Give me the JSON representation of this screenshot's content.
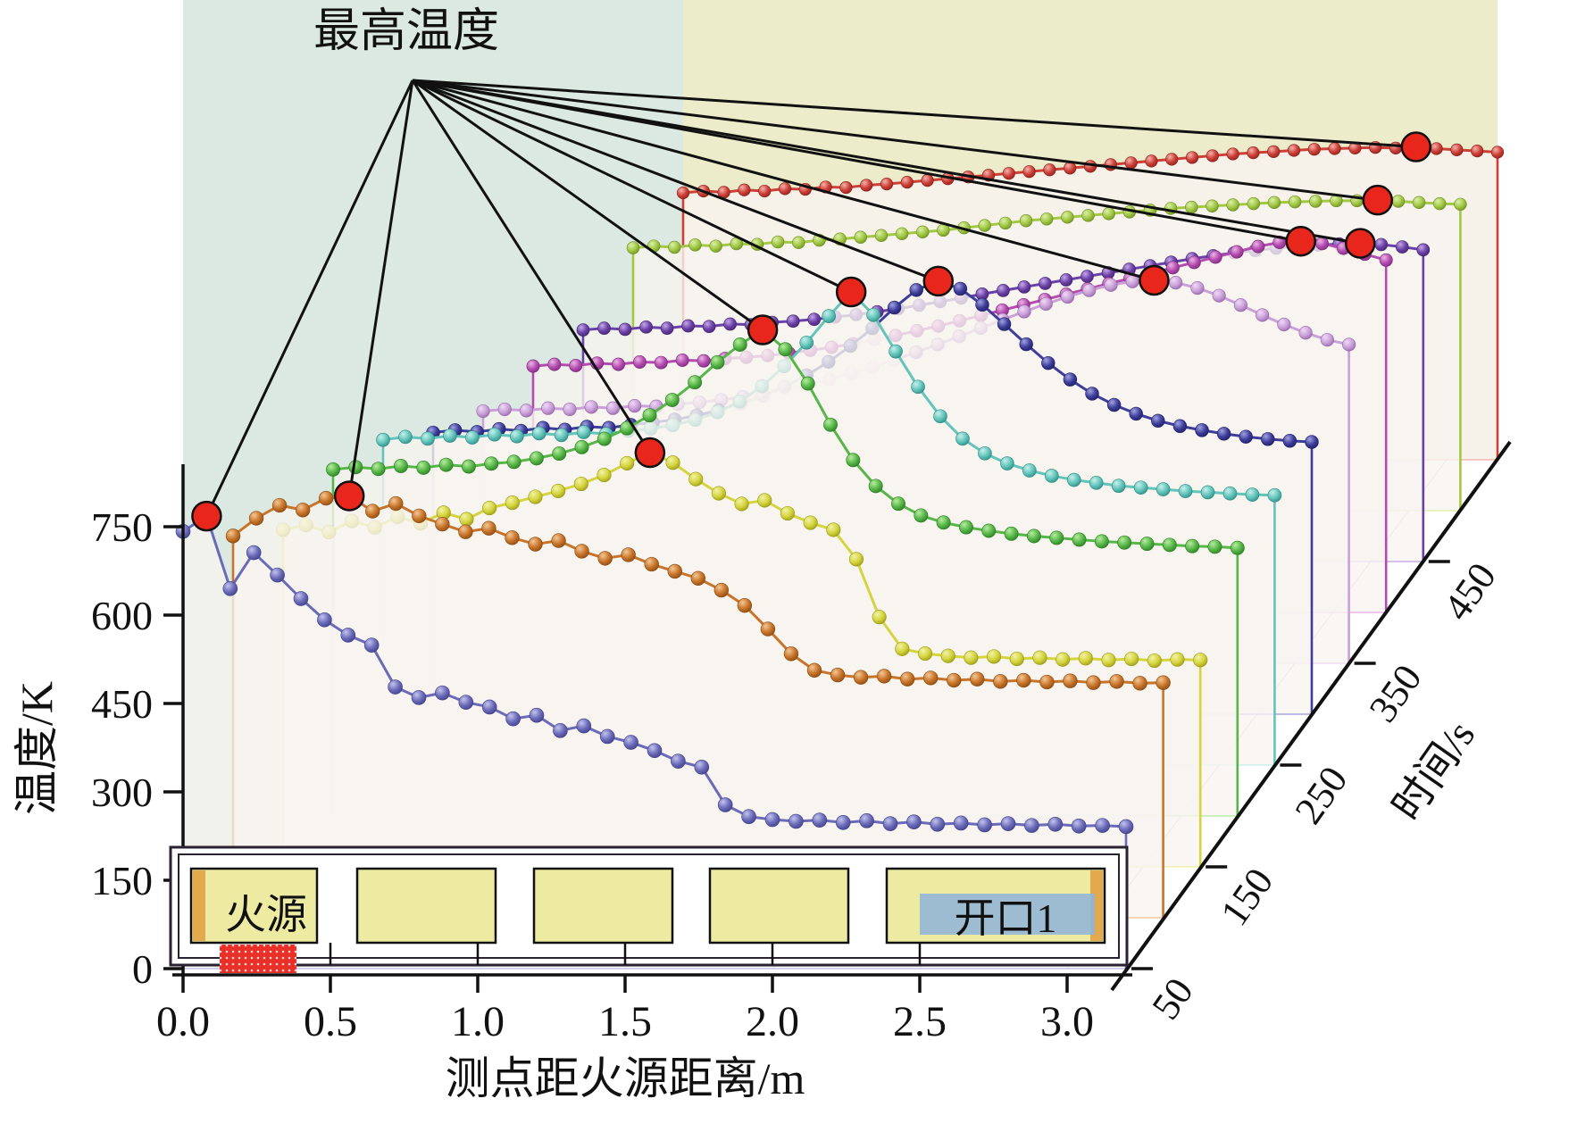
{
  "chart_data": {
    "type": "line",
    "variant": "3d-waterfall-scatter",
    "annotation": "最高温度",
    "xlabel": "测点距火源距离/m",
    "ylabel": "温度/K",
    "zlabel": "时间/s",
    "x_ticks": [
      "0.0",
      "0.5",
      "1.0",
      "1.5",
      "2.0",
      "2.5",
      "3.0"
    ],
    "y_ticks": [
      "0",
      "150",
      "300",
      "450",
      "600",
      "750"
    ],
    "t_ticks": [
      "50",
      "150",
      "250",
      "350",
      "450"
    ],
    "x_start": 0.0,
    "x_step": 0.08,
    "x_end": 3.2,
    "ylim": [
      0,
      850
    ],
    "grid": true,
    "wall_left_color": "#dbe9e2",
    "wall_back_color": "#edecca",
    "max_marker_color": "#e8261c",
    "series": [
      {
        "time": 50,
        "color": "#6a6ab8",
        "light": "#c3c3ee",
        "edge": "#3f3f8a",
        "max": {
          "x": 0.08,
          "T": 768
        },
        "values": [
          742,
          768,
          645,
          706,
          668,
          628,
          592,
          566,
          549,
          478,
          460,
          468,
          452,
          444,
          424,
          430,
          404,
          412,
          394,
          384,
          370,
          352,
          342,
          278,
          258,
          253,
          250,
          252,
          248,
          251,
          246,
          249,
          245,
          247,
          244,
          246,
          243,
          245,
          242,
          243,
          241
        ]
      },
      {
        "time": 100,
        "color": "#c8742a",
        "light": "#f3c795",
        "edge": "#8a4a10",
        "max": {
          "x": 0.4,
          "T": 716
        },
        "values": [
          648,
          678,
          700,
          692,
          712,
          716,
          690,
          703,
          682,
          668,
          655,
          661,
          645,
          634,
          640,
          622,
          610,
          616,
          600,
          588,
          576,
          556,
          530,
          490,
          448,
          420,
          412,
          408,
          410,
          405,
          407,
          403,
          405,
          401,
          403,
          400,
          402,
          399,
          401,
          398,
          399
        ]
      },
      {
        "time": 150,
        "color": "#d4d43e",
        "light": "#f2f2a8",
        "edge": "#9a9a12",
        "max": {
          "x": 1.28,
          "T": 703
        },
        "values": [
          572,
          580,
          568,
          587,
          576,
          594,
          583,
          601,
          590,
          609,
          618,
          628,
          638,
          650,
          665,
          685,
          703,
          686,
          658,
          634,
          616,
          622,
          600,
          584,
          572,
          522,
          424,
          370,
          362,
          358,
          355,
          357,
          353,
          355,
          352,
          354,
          351,
          353,
          350,
          352,
          351
        ]
      },
      {
        "time": 200,
        "color": "#57b648",
        "light": "#b7ec9f",
        "edge": "#2a7d22",
        "max": {
          "x": 1.52,
          "T": 825
        },
        "values": [
          588,
          592,
          589,
          594,
          591,
          596,
          593,
          598,
          601,
          607,
          615,
          626,
          640,
          658,
          680,
          706,
          736,
          770,
          800,
          825,
          792,
          734,
          664,
          604,
          560,
          530,
          510,
          498,
          490,
          484,
          479,
          475,
          472,
          469,
          466,
          464,
          462,
          460,
          458,
          457,
          455
        ]
      },
      {
        "time": 250,
        "color": "#62c4ba",
        "light": "#c6efeb",
        "edge": "#2d8c84",
        "max": {
          "x": 1.68,
          "T": 803
        },
        "values": [
          552,
          557,
          554,
          559,
          556,
          561,
          558,
          563,
          560,
          565,
          562,
          567,
          571,
          577,
          586,
          599,
          617,
          643,
          677,
          717,
          762,
          803,
          764,
          702,
          642,
          592,
          554,
          529,
          512,
          500,
          491,
          484,
          479,
          474,
          471,
          468,
          465,
          463,
          461,
          459,
          458
        ]
      },
      {
        "time": 300,
        "color": "#3d3d9b",
        "light": "#a2a2e0",
        "edge": "#1f1f66",
        "max": {
          "x": 1.84,
          "T": 735
        },
        "values": [
          478,
          482,
          479,
          484,
          481,
          486,
          483,
          488,
          486,
          491,
          495,
          500,
          507,
          516,
          527,
          540,
          556,
          575,
          598,
          625,
          655,
          690,
          720,
          735,
          722,
          695,
          662,
          628,
          596,
          568,
          544,
          525,
          510,
          498,
          489,
          482,
          476,
          471,
          467,
          464,
          462
        ]
      },
      {
        "time": 350,
        "color": "#c9a0d8",
        "light": "#f0d9f6",
        "edge": "#9668ab",
        "max": {
          "x": 2.48,
          "T": 650
        },
        "values": [
          428,
          431,
          429,
          433,
          431,
          435,
          433,
          437,
          436,
          440,
          443,
          447,
          452,
          458,
          465,
          473,
          482,
          492,
          503,
          515,
          528,
          541,
          555,
          569,
          583,
          597,
          610,
          622,
          633,
          642,
          648,
          650,
          646,
          637,
          624,
          608,
          591,
          575,
          561,
          549,
          541
        ]
      },
      {
        "time": 400,
        "color": "#b44cb0",
        "light": "#eab4e4",
        "edge": "#7d2a7d",
        "max": {
          "x": 2.88,
          "T": 630
        },
        "values": [
          418,
          421,
          419,
          423,
          421,
          425,
          424,
          428,
          427,
          431,
          433,
          436,
          440,
          445,
          450,
          456,
          463,
          470,
          478,
          486,
          495,
          504,
          513,
          522,
          531,
          540,
          549,
          558,
          567,
          576,
          585,
          594,
          603,
          612,
          621,
          628,
          630,
          626,
          618,
          608,
          598
        ]
      },
      {
        "time": 450,
        "color": "#6a41a8",
        "light": "#c5a8e6",
        "edge": "#472370",
        "max": {
          "x": 2.96,
          "T": 540
        },
        "values": [
          393,
          396,
          394,
          398,
          396,
          400,
          399,
          403,
          402,
          406,
          408,
          411,
          415,
          419,
          424,
          429,
          435,
          441,
          447,
          454,
          460,
          466,
          472,
          478,
          484,
          490,
          496,
          502,
          508,
          514,
          519,
          524,
          528,
          532,
          535,
          537,
          539,
          540,
          538,
          534,
          529
        ]
      },
      {
        "time": 500,
        "color": "#a2c845",
        "light": "#dcefab",
        "edge": "#6d8f1f",
        "max": {
          "x": 2.88,
          "T": 527
        },
        "values": [
          446,
          449,
          447,
          451,
          449,
          453,
          452,
          456,
          455,
          459,
          461,
          464,
          467,
          470,
          473,
          476,
          480,
          484,
          488,
          492,
          495,
          498,
          501,
          504,
          507,
          510,
          513,
          515,
          517,
          519,
          521,
          523,
          524,
          525,
          526,
          526,
          527,
          525,
          523,
          521,
          520
        ]
      },
      {
        "time": 550,
        "color": "#cc4038",
        "light": "#f4b3ad",
        "edge": "#8f1f1a",
        "max": {
          "x": 2.88,
          "T": 531
        },
        "values": [
          453,
          456,
          454,
          458,
          456,
          460,
          459,
          463,
          462,
          466,
          468,
          471,
          474,
          477,
          480,
          483,
          486,
          489,
          492,
          495,
          498,
          501,
          504,
          507,
          510,
          513,
          516,
          519,
          521,
          523,
          525,
          527,
          528,
          529,
          530,
          529,
          531,
          528,
          526,
          524,
          522
        ]
      }
    ],
    "inset": {
      "fire_label": "火源",
      "fire_label_color": "#d8241e",
      "opening_label": "开口1",
      "opening_label_color": "#3fae3a",
      "box_fill": "#edeaa2",
      "strip_fill": "#e2a94f",
      "opening_fill": "#92b5d8",
      "hatch_fill": "#e83028"
    }
  }
}
